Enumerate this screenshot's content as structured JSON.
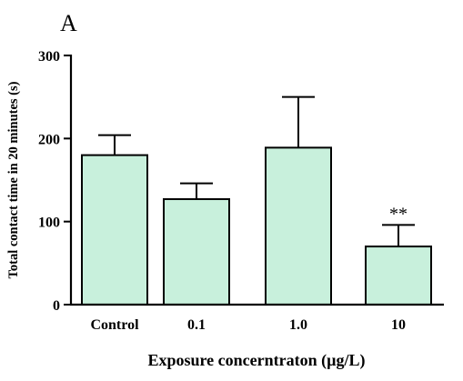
{
  "chart_data": {
    "type": "bar",
    "panel_label": "A",
    "title": "",
    "xlabel": "Exposure concerntraton (µg/L)",
    "ylabel": "Total contact time in 20 minutes (s)",
    "categories": [
      "Control",
      "0.1",
      "1.0",
      "10"
    ],
    "values": [
      180,
      127,
      189,
      70
    ],
    "errors": [
      24,
      19,
      61,
      26
    ],
    "annotations": [
      {
        "category": "10",
        "text": "**"
      }
    ],
    "yticks": [
      0,
      100,
      200,
      300
    ],
    "ylim": [
      0,
      300
    ],
    "grid": false,
    "legend": "none",
    "bar_color": "#c8f0dc",
    "edge_color": "#000000"
  }
}
